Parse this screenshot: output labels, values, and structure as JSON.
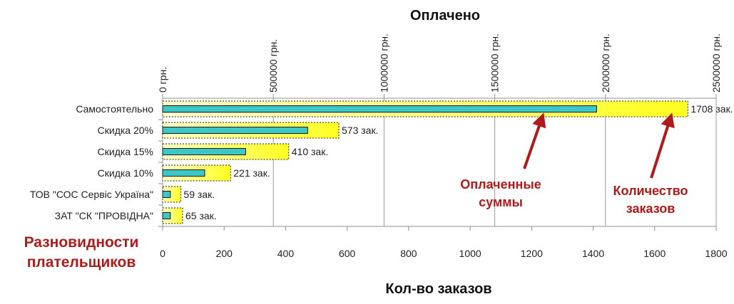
{
  "chart_data": {
    "type": "bar",
    "orientation": "horizontal",
    "top_axis_title": "Оплачено",
    "bottom_axis_title": "Кол-во заказов",
    "category_axis_title": "Разновидности плательщиков",
    "top_axis": {
      "ticks": [
        "0 грн.",
        "500000 грн.",
        "1000000 грн.",
        "1500000 грн.",
        "2000000 грн.",
        "2500000 грн."
      ],
      "min": 0,
      "max": 2500000
    },
    "bottom_axis": {
      "ticks": [
        "0",
        "200",
        "400",
        "600",
        "800",
        "1000",
        "1200",
        "1400",
        "1600",
        "1800"
      ],
      "min": 0,
      "max": 1800
    },
    "categories": [
      "Самостоятельно",
      "Скидка 20%",
      "Скидка 15%",
      "Скидка 10%",
      "ТОВ \"СОС Сервіс Україна\"",
      "ЗАТ \"СК \"ПРОВІДНА\""
    ],
    "series": [
      {
        "name": "Количество заказов",
        "axis": "bottom",
        "values": [
          1708,
          573,
          410,
          221,
          59,
          65
        ],
        "labels": [
          "1708 зак.",
          "573 зак.",
          "410 зак.",
          "221 зак.",
          "59 зак.",
          "65 зак."
        ],
        "color": "#ffff30"
      },
      {
        "name": "Оплаченные суммы",
        "axis": "top",
        "values": [
          1960000,
          655000,
          375000,
          190000,
          35000,
          35000
        ],
        "color": "#33cccc"
      }
    ],
    "annotations": [
      {
        "text_lines": [
          "Оплаченные",
          "суммы"
        ],
        "color": "#b01a1a"
      },
      {
        "text_lines": [
          "Количество",
          "заказов"
        ],
        "color": "#b01a1a"
      }
    ],
    "category_title_lines": [
      "Разновидности",
      "плательщиков"
    ]
  }
}
